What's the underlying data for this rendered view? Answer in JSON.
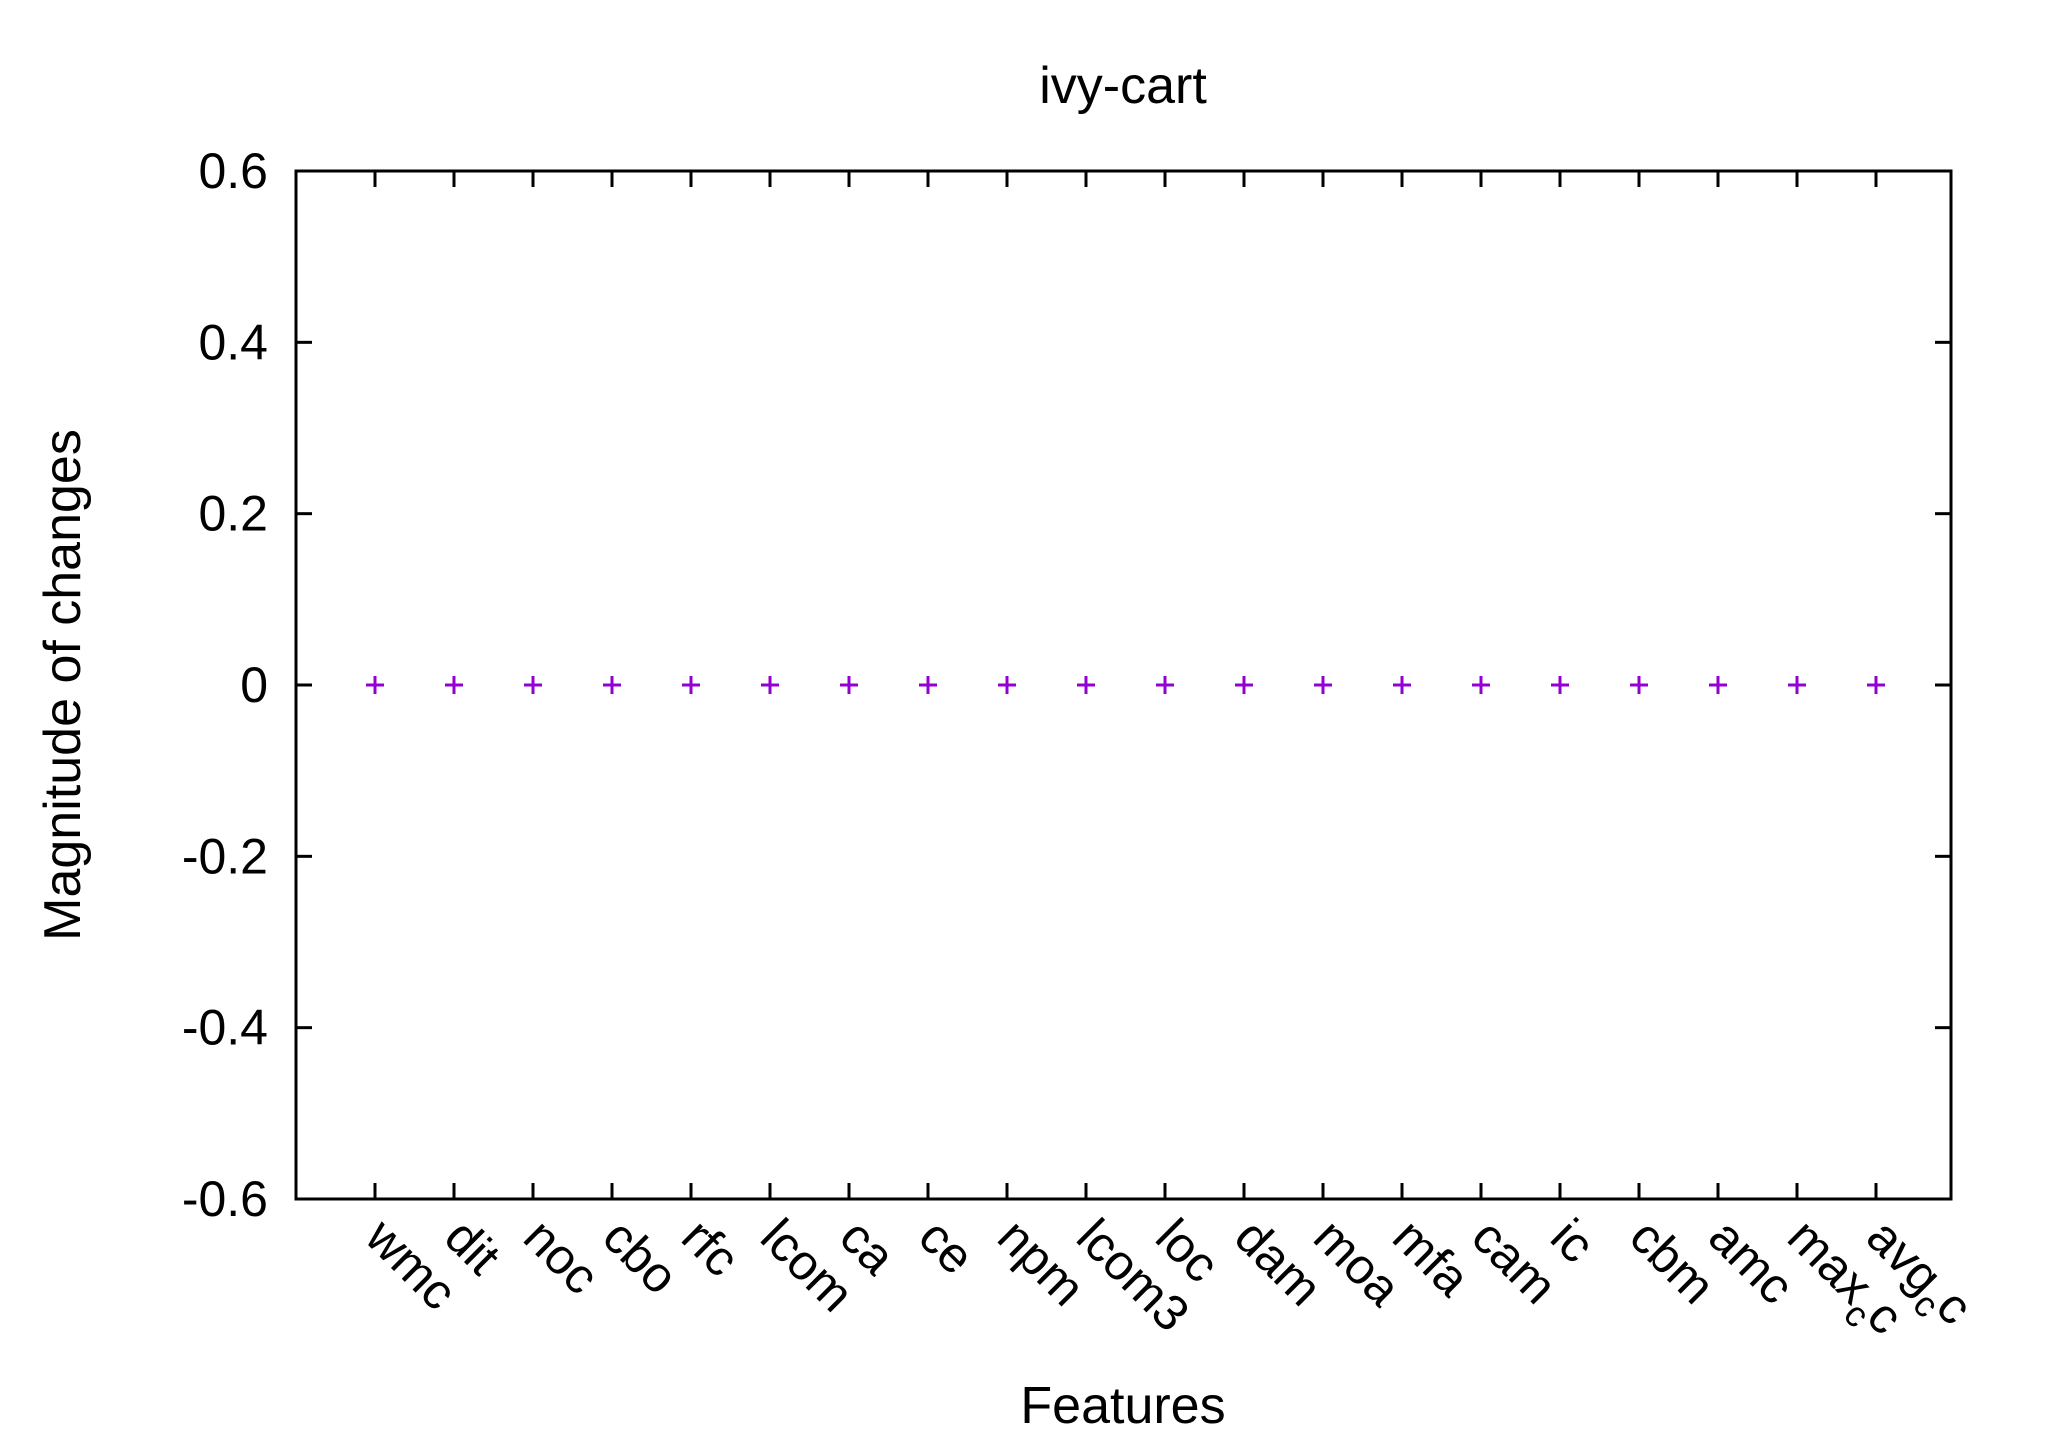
{
  "chart_data": {
    "type": "scatter",
    "title": "ivy-cart",
    "xlabel": "Features",
    "ylabel": "Magnitude of changes",
    "ylim": [
      -0.6,
      0.6
    ],
    "yticks": [
      -0.6,
      -0.4,
      -0.2,
      0,
      0.2,
      0.4,
      0.6
    ],
    "ytick_labels": [
      "-0.6",
      "-0.4",
      "-0.2",
      "0",
      "0.2",
      "0.4",
      "0.6"
    ],
    "categories": [
      {
        "label": "wmc"
      },
      {
        "label": "dit"
      },
      {
        "label": "noc"
      },
      {
        "label": "cbo"
      },
      {
        "label": "rfc"
      },
      {
        "label": "lcom"
      },
      {
        "label": "ca"
      },
      {
        "label": "ce"
      },
      {
        "label": "npm"
      },
      {
        "label": "lcom3"
      },
      {
        "label": "loc"
      },
      {
        "label": "dam"
      },
      {
        "label": "moa"
      },
      {
        "label": "mfa"
      },
      {
        "label": "cam"
      },
      {
        "label": "ic"
      },
      {
        "label": "cbm"
      },
      {
        "label": "amc"
      },
      {
        "label": "max",
        "sub": "c",
        "tail": "c"
      },
      {
        "label": "avg",
        "sub": "c",
        "tail": "c"
      }
    ],
    "values": [
      0,
      0,
      0,
      0,
      0,
      0,
      0,
      0,
      0,
      0,
      0,
      0,
      0,
      0,
      0,
      0,
      0,
      0,
      0,
      0
    ],
    "marker": "+",
    "marker_color": "#9400D3",
    "grid": false,
    "legend": "none"
  }
}
